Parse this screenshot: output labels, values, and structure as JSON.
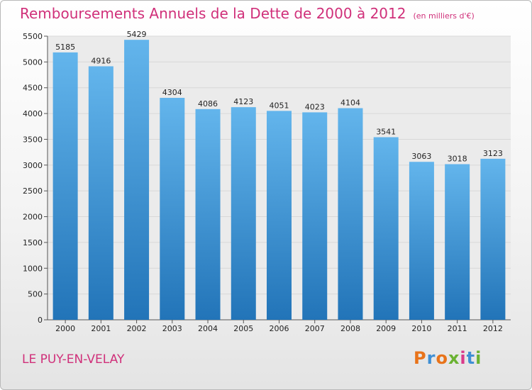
{
  "header": {
    "title": "Remboursements Annuels de la Dette de 2000 à 2012",
    "subtitle": "(en milliers d'€)"
  },
  "footer": {
    "city": "LE PUY-EN-VELAY",
    "logo_text": "Proxiti",
    "logo_colors": [
      "#e8731a",
      "#3f8fd4",
      "#e8731a",
      "#6ab232",
      "#d93a8b",
      "#3f8fd4",
      "#6ab232"
    ]
  },
  "colors": {
    "title": "#d0307a",
    "bar_top": "#63b5ec",
    "bar_bottom": "#2274b8",
    "grid": "#d8d8d8"
  },
  "chart_data": {
    "type": "bar",
    "title": "Remboursements Annuels de la Dette de 2000 à 2012",
    "subtitle": "(en milliers d'€)",
    "xlabel": "",
    "ylabel": "",
    "categories": [
      "2000",
      "2001",
      "2002",
      "2003",
      "2004",
      "2005",
      "2006",
      "2007",
      "2008",
      "2009",
      "2010",
      "2011",
      "2012"
    ],
    "values": [
      5185,
      4916,
      5429,
      4304,
      4086,
      4123,
      4051,
      4023,
      4104,
      3541,
      3063,
      3018,
      3123
    ],
    "ylim": [
      0,
      5500
    ],
    "yticks": [
      0,
      500,
      1000,
      1500,
      2000,
      2500,
      3000,
      3500,
      4000,
      4500,
      5000,
      5500
    ],
    "grid": true,
    "data_labels": true
  }
}
